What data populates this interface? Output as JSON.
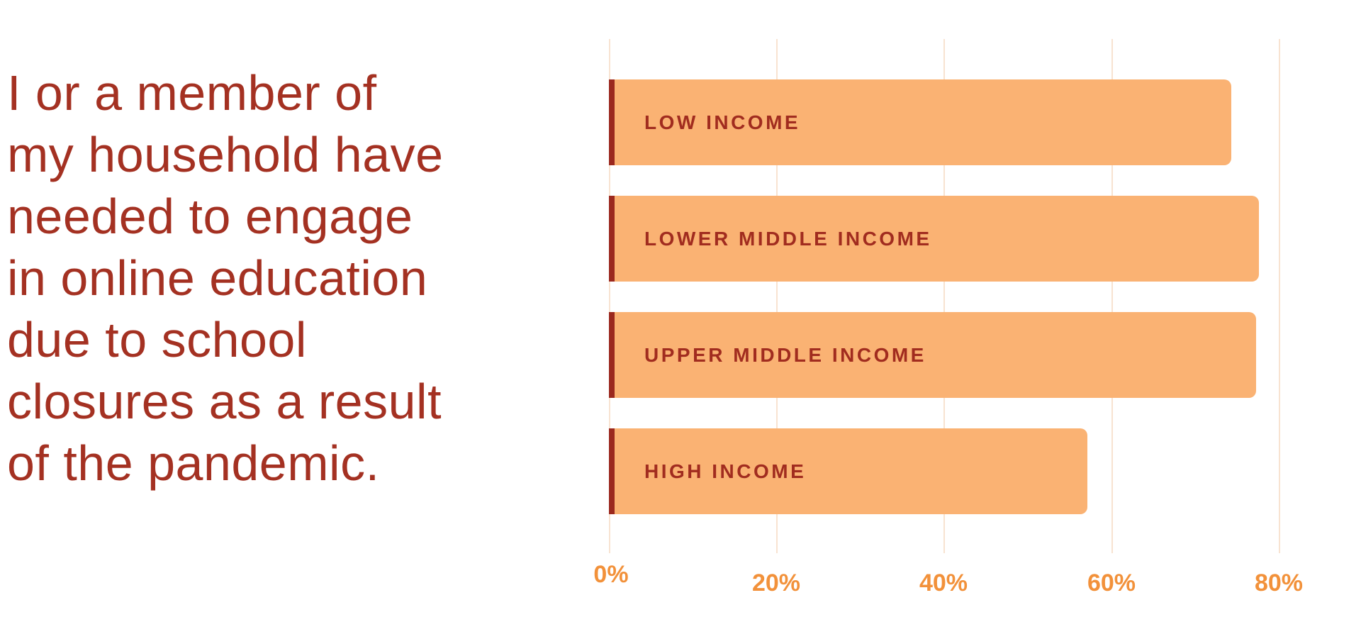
{
  "question": {
    "text": "I or a member of my household have needed to engage in online education due to school closures as a result of the pandemic.",
    "lines": [
      "I or a member of",
      "my household have",
      "needed to engage",
      "in online education",
      "due to school",
      "closures as a result",
      "of the pandemic."
    ]
  },
  "chart_data": {
    "type": "bar",
    "orientation": "horizontal",
    "title": "",
    "xlabel": "",
    "ylabel": "",
    "categories": [
      "LOW INCOME",
      "LOWER MIDDLE INCOME",
      "UPPER MIDDLE INCOME",
      "HIGH INCOME"
    ],
    "values": [
      74.3,
      77.6,
      77.3,
      57.1
    ],
    "unit": "%",
    "x_ticks": [
      "0%",
      "20%",
      "40%",
      "60%",
      "80%"
    ],
    "x_tick_values": [
      0,
      20,
      40,
      60,
      80
    ],
    "xlim": [
      0,
      86.5
    ],
    "grid": "vertical gridlines at 20% intervals",
    "legend": "none",
    "bar_labels_inside": true
  },
  "colors": {
    "background": "#FFFFFF",
    "text_red": "#A43122",
    "bar_label_red": "#A12C1F",
    "bar_fill": "#FAB273",
    "bar_edge_red": "#9B281E",
    "axis_tick_orange": "#F2913A",
    "gridline": "#F8E3D1"
  }
}
